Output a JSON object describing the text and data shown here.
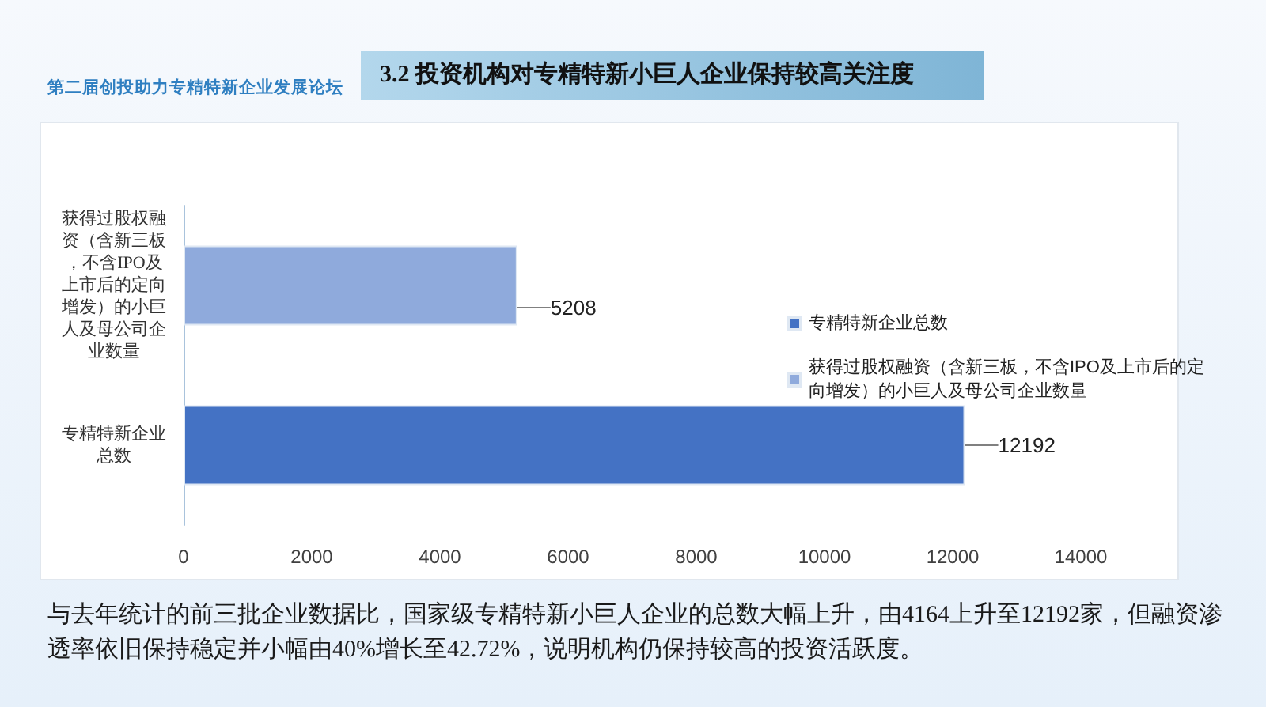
{
  "chart_data": {
    "type": "bar",
    "orientation": "horizontal",
    "title": "3.2 投资机构对专精特新小巨人企业保持较高关注度",
    "categories": [
      "获得过股权融资（含新三板，不含IPO及上市后的定向增发）的小巨人及母公司企业数量",
      "专精特新企业总数"
    ],
    "series": [
      {
        "name": "专精特新企业总数",
        "color": "#4472c4",
        "values": [
          null,
          12192
        ]
      },
      {
        "name": "获得过股权融资（含新三板，不含IPO及上市后的定向增发）的小巨人及母公司企业数量",
        "color": "#8faadc",
        "values": [
          5208,
          null
        ]
      }
    ],
    "xlim": [
      0,
      14000
    ],
    "xticks": [
      0,
      2000,
      4000,
      6000,
      8000,
      10000,
      12000,
      14000
    ],
    "data_labels": true,
    "legend": "right",
    "grid": false,
    "annotations": [
      "第二届创投助力专精特新企业发展论坛",
      "与去年统计的前三批企业数据比，国家级专精特新小巨人企业的总数大幅上升，由4164上升至12192家，但融资渗透率依旧保持稳定并小幅由40%增长至42.72%，说明机构仍保持较高的投资活跃度。"
    ]
  }
}
